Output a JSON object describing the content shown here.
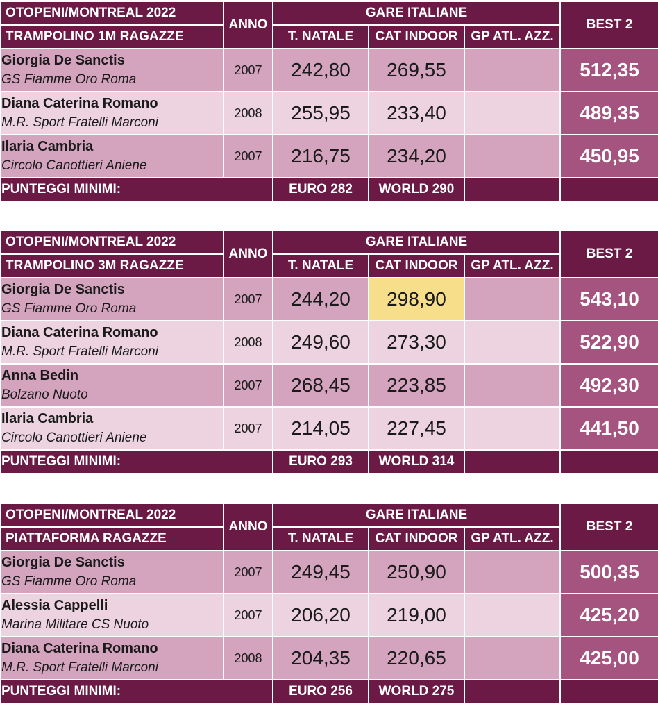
{
  "colors": {
    "header_bg": "#6b1a45",
    "best_bg": "#a5547f",
    "row_dark": "#d4a4bf",
    "row_light": "#ecd3df",
    "highlight": "#f7de8a"
  },
  "tables": [
    {
      "event": "OTOPENI/MONTREAL 2022",
      "category": "TRAMPOLINO 1M RAGAZZE",
      "anno_label": "ANNO",
      "group_label": "GARE ITALIANE",
      "col_natale": "T. NATALE",
      "col_indoor": "CAT INDOOR",
      "col_gp": "GP ATL. AZZ.",
      "best_label": "BEST 2",
      "rows": [
        {
          "name": "Giorgia De Sanctis",
          "club": "GS Fiamme Oro Roma",
          "anno": "2007",
          "natale": "242,80",
          "indoor": "269,55",
          "gp": "",
          "best": "512,35"
        },
        {
          "name": "Diana Caterina Romano",
          "club": "M.R. Sport Fratelli Marconi",
          "anno": "2008",
          "natale": "255,95",
          "indoor": "233,40",
          "gp": "",
          "best": "489,35"
        },
        {
          "name": "Ilaria Cambria",
          "club": "Circolo Canottieri Aniene",
          "anno": "2007",
          "natale": "216,75",
          "indoor": "234,20",
          "gp": "",
          "best": "450,95"
        }
      ],
      "footer_label": "PUNTEGGI MINIMI:",
      "euro": "EURO 282",
      "world": "WORLD 290"
    },
    {
      "event": "OTOPENI/MONTREAL 2022",
      "category": "TRAMPOLINO 3M RAGAZZE",
      "anno_label": "ANNO",
      "group_label": "GARE ITALIANE",
      "col_natale": "T. NATALE",
      "col_indoor": "CAT INDOOR",
      "col_gp": "GP ATL. AZZ.",
      "best_label": "BEST 2",
      "rows": [
        {
          "name": "Giorgia De Sanctis",
          "club": "GS Fiamme Oro Roma",
          "anno": "2007",
          "natale": "244,20",
          "indoor": "298,90",
          "gp": "",
          "best": "543,10"
        },
        {
          "name": "Diana Caterina Romano",
          "club": "M.R. Sport Fratelli Marconi",
          "anno": "2008",
          "natale": "249,60",
          "indoor": "273,30",
          "gp": "",
          "best": "522,90"
        },
        {
          "name": "Anna Bedin",
          "club": "Bolzano Nuoto",
          "anno": "2007",
          "natale": "268,45",
          "indoor": "223,85",
          "gp": "",
          "best": "492,30"
        },
        {
          "name": "Ilaria Cambria",
          "club": "Circolo Canottieri Aniene",
          "anno": "2007",
          "natale": "214,05",
          "indoor": "227,45",
          "gp": "",
          "best": "441,50"
        }
      ],
      "footer_label": "PUNTEGGI MINIMI:",
      "euro": "EURO 293",
      "world": "WORLD 314"
    },
    {
      "event": "OTOPENI/MONTREAL 2022",
      "category": "PIATTAFORMA RAGAZZE",
      "anno_label": "ANNO",
      "group_label": "GARE ITALIANE",
      "col_natale": "T. NATALE",
      "col_indoor": "CAT INDOOR",
      "col_gp": "GP ATL. AZZ.",
      "best_label": "BEST 2",
      "rows": [
        {
          "name": "Giorgia De Sanctis",
          "club": "GS Fiamme Oro Roma",
          "anno": "2007",
          "natale": "249,45",
          "indoor": "250,90",
          "gp": "",
          "best": "500,35"
        },
        {
          "name": "Alessia Cappelli",
          "club": "Marina Militare CS Nuoto",
          "anno": "2007",
          "natale": "206,20",
          "indoor": "219,00",
          "gp": "",
          "best": "425,20"
        },
        {
          "name": "Diana Caterina Romano",
          "club": "M.R. Sport Fratelli Marconi",
          "anno": "2008",
          "natale": "204,35",
          "indoor": "220,65",
          "gp": "",
          "best": "425,00"
        }
      ],
      "footer_label": "PUNTEGGI MINIMI:",
      "euro": "EURO 256",
      "world": "WORLD 275"
    }
  ]
}
